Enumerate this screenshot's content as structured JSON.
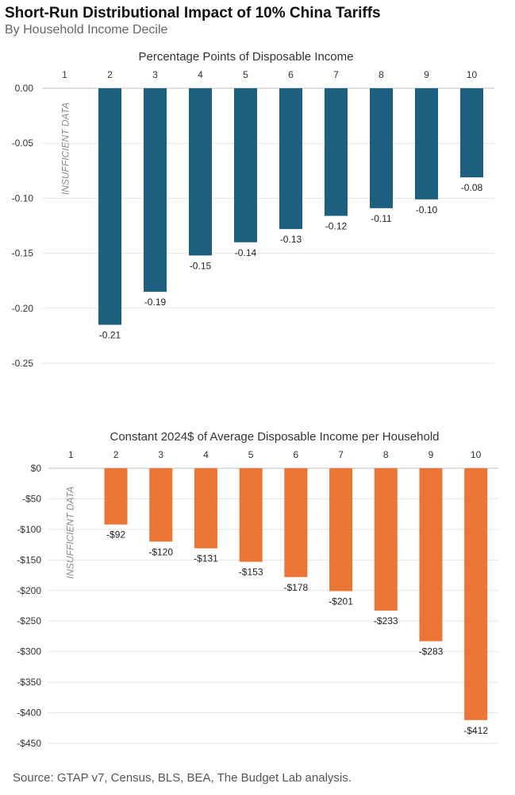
{
  "header": {
    "title": "Short-Run Distributional Impact of 10% China Tariffs",
    "subtitle": "By Household Income Decile"
  },
  "source": "Source: GTAP v7, Census, BLS, BEA, The Budget Lab analysis.",
  "colors": {
    "pct": "#1c5f7f",
    "dollars": "#ea7535",
    "grid": "#e4e4e4",
    "axis": "#bfbfbf"
  },
  "chart_data": [
    {
      "type": "bar",
      "title": "Percentage Points of Disposable Income",
      "categories": [
        "1",
        "2",
        "3",
        "4",
        "5",
        "6",
        "7",
        "8",
        "9",
        "10"
      ],
      "values": [
        null,
        -0.215,
        -0.185,
        -0.152,
        -0.14,
        -0.128,
        -0.116,
        -0.109,
        -0.101,
        -0.081
      ],
      "data_labels": [
        "",
        "-0.21",
        "-0.19",
        "-0.15",
        "-0.14",
        "-0.13",
        "-0.12",
        "-0.11",
        "-0.10",
        "-0.08"
      ],
      "ylim": [
        -0.25,
        0
      ],
      "yticks": [
        0,
        -0.05,
        -0.1,
        -0.15,
        -0.2,
        -0.25
      ],
      "ytick_labels": [
        "0.00",
        "-0.05",
        "-0.10",
        "-0.15",
        "-0.20",
        "-0.25"
      ],
      "missing_label": "INSUFFICIENT DATA",
      "color": "#1c5f7f"
    },
    {
      "type": "bar",
      "title": "Constant 2024$ of Average Disposable Income per Household",
      "categories": [
        "1",
        "2",
        "3",
        "4",
        "5",
        "6",
        "7",
        "8",
        "9",
        "10"
      ],
      "values": [
        null,
        -92,
        -120,
        -131,
        -153,
        -178,
        -201,
        -233,
        -283,
        -412
      ],
      "data_labels": [
        "",
        "-$92",
        "-$120",
        "-$131",
        "-$153",
        "-$178",
        "-$201",
        "-$233",
        "-$283",
        "-$412"
      ],
      "ylim": [
        -450,
        0
      ],
      "yticks": [
        0,
        -50,
        -100,
        -150,
        -200,
        -250,
        -300,
        -350,
        -400,
        -450
      ],
      "ytick_labels": [
        "$0",
        "-$50",
        "-$100",
        "-$150",
        "-$200",
        "-$250",
        "-$300",
        "-$350",
        "-$400",
        "-$450"
      ],
      "missing_label": "INSUFFICIENT DATA",
      "color": "#ea7535"
    }
  ]
}
